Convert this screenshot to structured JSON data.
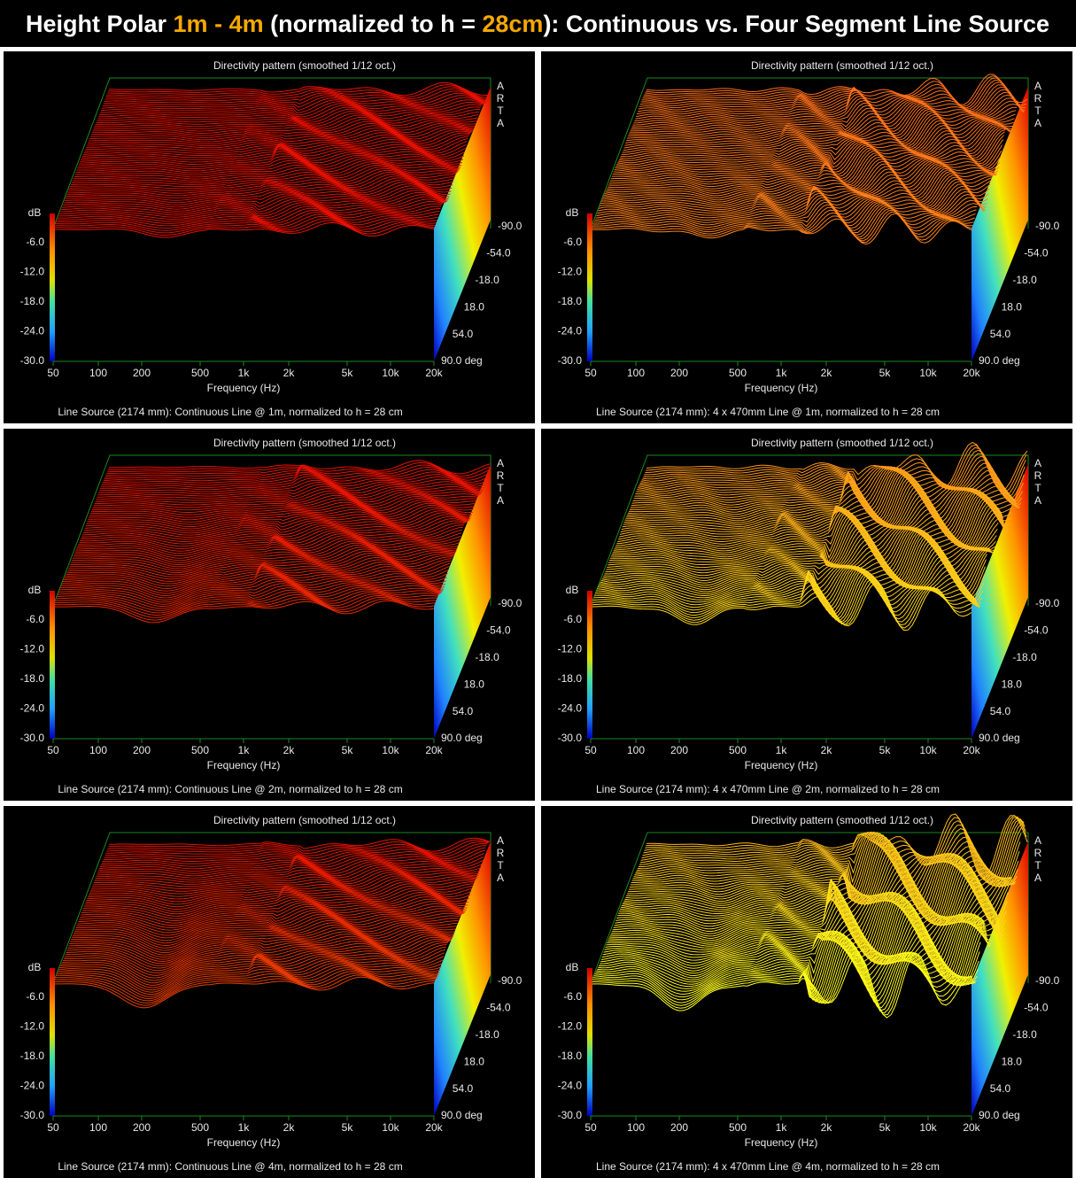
{
  "header": {
    "prefix": "Height Polar ",
    "range_start": "1m",
    "dash": " - ",
    "range_end": "4m",
    "middle": " (normalized to h = ",
    "height": "28cm",
    "suffix": "): Continuous vs. Four Segment Line Source"
  },
  "panels": [
    {
      "plot_title": "Directivity pattern (smoothed 1/12 oct.)",
      "db_label": "dB",
      "db_ticks": [
        "-6.0",
        "-12.0",
        "-18.0",
        "-24.0",
        "-30.0"
      ],
      "freq_ticks": [
        "50",
        "100",
        "200",
        "500",
        "1k",
        "2k",
        "5k",
        "10k",
        "20k"
      ],
      "freq_label": "Frequency (Hz)",
      "angle_ticks": [
        "-90.0",
        "-54.0",
        "-18.0",
        "18.0",
        "54.0",
        "90.0 deg"
      ],
      "brand": [
        "A",
        "R",
        "T",
        "A"
      ],
      "caption": "Line Source (2174 mm): Continuous Line @ 1m, normalized to h = 28 cm"
    },
    {
      "plot_title": "Directivity pattern (smoothed 1/12 oct.)",
      "db_label": "dB",
      "db_ticks": [
        "-6.0",
        "-12.0",
        "-18.0",
        "-24.0",
        "-30.0"
      ],
      "freq_ticks": [
        "50",
        "100",
        "200",
        "500",
        "1k",
        "2k",
        "5k",
        "10k",
        "20k"
      ],
      "freq_label": "Frequency (Hz)",
      "angle_ticks": [
        "-90.0",
        "-54.0",
        "-18.0",
        "18.0",
        "54.0",
        "90.0 deg"
      ],
      "brand": [
        "A",
        "R",
        "T",
        "A"
      ],
      "caption": "Line Source (2174 mm): 4 x 470mm Line @ 1m, normalized to h = 28 cm"
    },
    {
      "plot_title": "Directivity pattern (smoothed 1/12 oct.)",
      "db_label": "dB",
      "db_ticks": [
        "-6.0",
        "-12.0",
        "-18.0",
        "-24.0",
        "-30.0"
      ],
      "freq_ticks": [
        "50",
        "100",
        "200",
        "500",
        "1k",
        "2k",
        "5k",
        "10k",
        "20k"
      ],
      "freq_label": "Frequency (Hz)",
      "angle_ticks": [
        "-90.0",
        "-54.0",
        "-18.0",
        "18.0",
        "54.0",
        "90.0 deg"
      ],
      "brand": [
        "A",
        "R",
        "T",
        "A"
      ],
      "caption": "Line Source (2174 mm): Continuous Line @ 2m, normalized to h = 28 cm"
    },
    {
      "plot_title": "Directivity pattern (smoothed 1/12 oct.)",
      "db_label": "dB",
      "db_ticks": [
        "-6.0",
        "-12.0",
        "-18.0",
        "-24.0",
        "-30.0"
      ],
      "freq_ticks": [
        "50",
        "100",
        "200",
        "500",
        "1k",
        "2k",
        "5k",
        "10k",
        "20k"
      ],
      "freq_label": "Frequency (Hz)",
      "angle_ticks": [
        "-90.0",
        "-54.0",
        "-18.0",
        "18.0",
        "54.0",
        "90.0 deg"
      ],
      "brand": [
        "A",
        "R",
        "T",
        "A"
      ],
      "caption": "Line Source (2174 mm): 4 x 470mm Line @ 2m, normalized to h = 28 cm"
    },
    {
      "plot_title": "Directivity pattern (smoothed 1/12 oct.)",
      "db_label": "dB",
      "db_ticks": [
        "-6.0",
        "-12.0",
        "-18.0",
        "-24.0",
        "-30.0"
      ],
      "freq_ticks": [
        "50",
        "100",
        "200",
        "500",
        "1k",
        "2k",
        "5k",
        "10k",
        "20k"
      ],
      "freq_label": "Frequency (Hz)",
      "angle_ticks": [
        "-90.0",
        "-54.0",
        "-18.0",
        "18.0",
        "54.0",
        "90.0 deg"
      ],
      "brand": [
        "A",
        "R",
        "T",
        "A"
      ],
      "caption": "Line Source (2174 mm): Continuous Line @ 4m, normalized to h = 28 cm"
    },
    {
      "plot_title": "Directivity pattern (smoothed 1/12 oct.)",
      "db_label": "dB",
      "db_ticks": [
        "-6.0",
        "-12.0",
        "-18.0",
        "-24.0",
        "-30.0"
      ],
      "freq_ticks": [
        "50",
        "100",
        "200",
        "500",
        "1k",
        "2k",
        "5k",
        "10k",
        "20k"
      ],
      "freq_label": "Frequency (Hz)",
      "angle_ticks": [
        "-90.0",
        "-54.0",
        "-18.0",
        "18.0",
        "54.0",
        "90.0 deg"
      ],
      "brand": [
        "A",
        "R",
        "T",
        "A"
      ],
      "caption": "Line Source (2174 mm): 4 x 470mm Line @ 4m, normalized to h = 28 cm"
    }
  ]
}
